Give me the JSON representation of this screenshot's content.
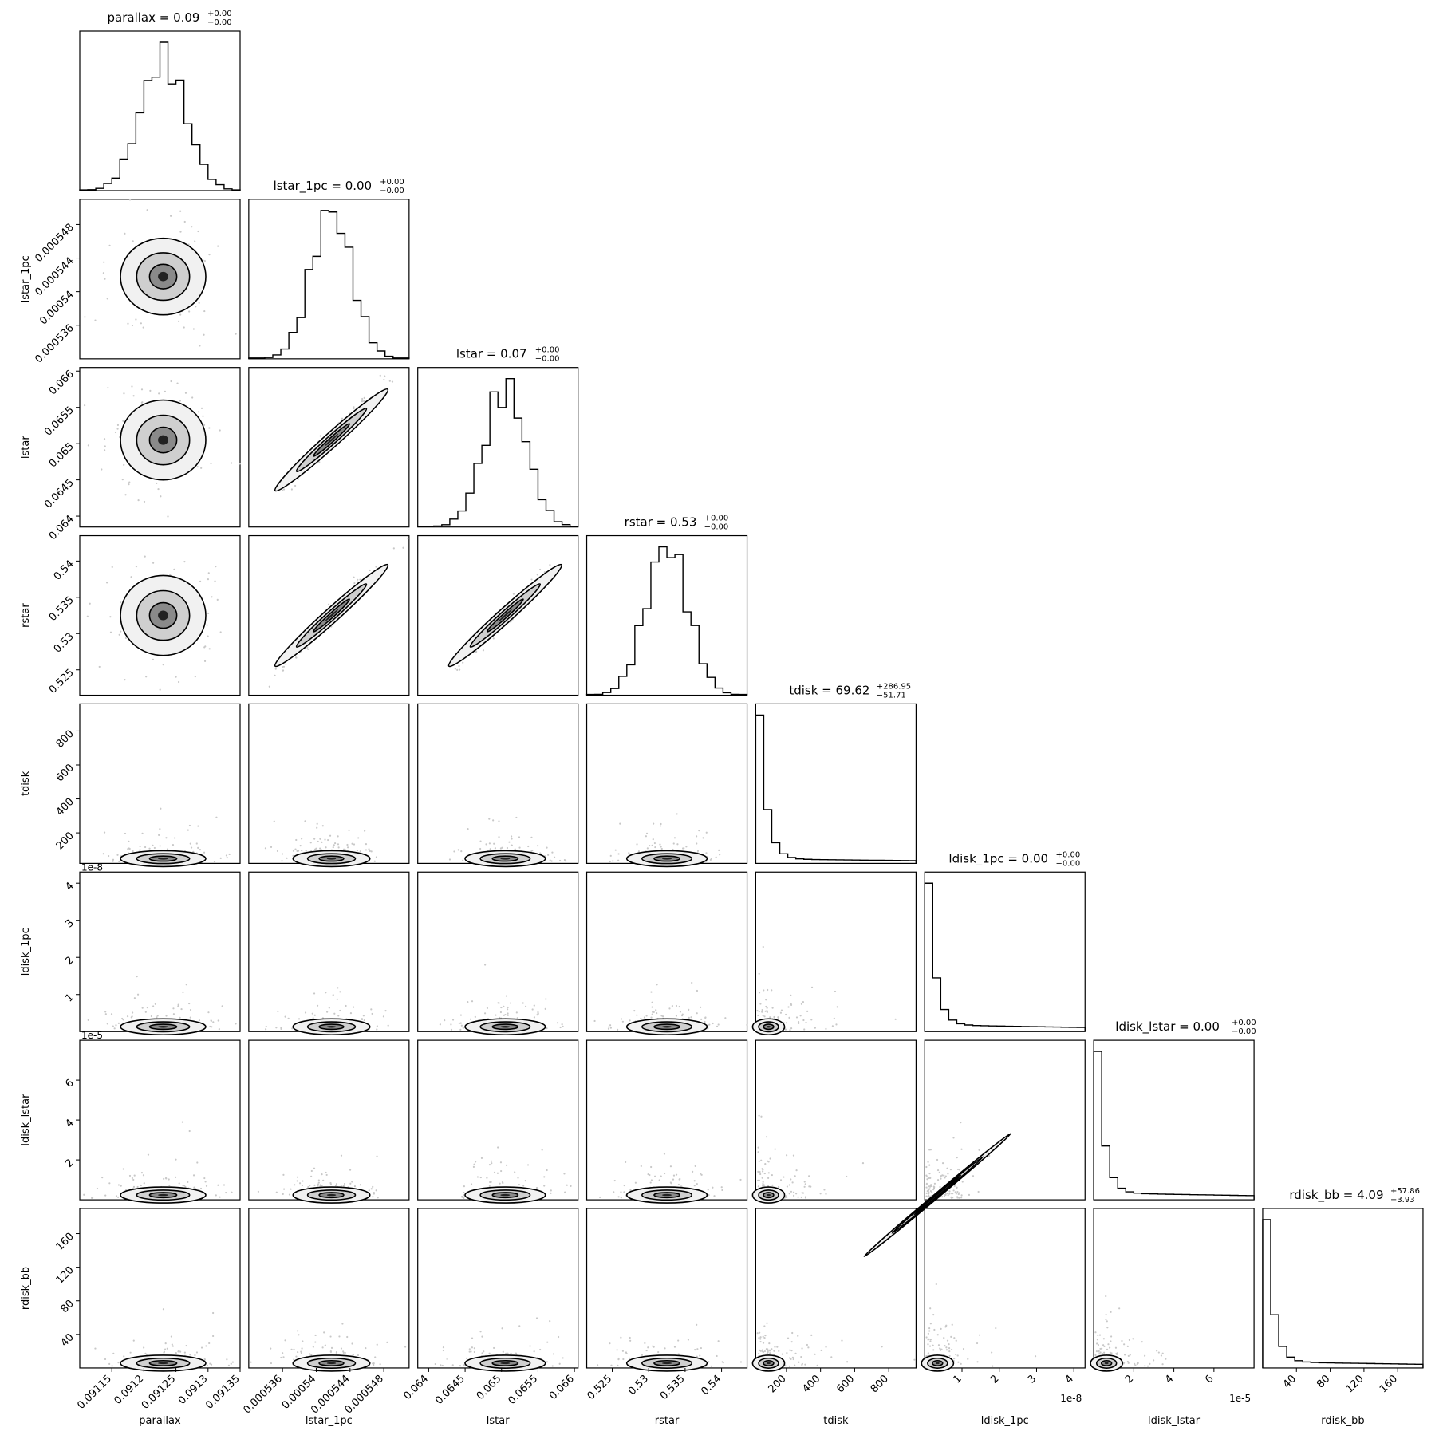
{
  "chart_data": {
    "type": "corner",
    "parameters": [
      {
        "name": "parallax",
        "ticks": [
          0.09115,
          0.0912,
          0.09125,
          0.0913,
          0.09135
        ],
        "range": [
          0.0911,
          0.09135
        ],
        "median": 0.09123,
        "sigma": 3.5e-05,
        "shape": "normal"
      },
      {
        "name": "lstar_1pc",
        "ticks": [
          0.000536,
          0.00054,
          0.000544,
          0.000548
        ],
        "range": [
          0.000532,
          0.000551
        ],
        "median": 0.0005418,
        "sigma": 2.4e-06,
        "shape": "normal"
      },
      {
        "name": "lstar",
        "ticks": [
          0.064,
          0.0645,
          0.065,
          0.0655,
          0.066
        ],
        "range": [
          0.06385,
          0.06605
        ],
        "median": 0.06505,
        "sigma": 0.00029,
        "shape": "normal"
      },
      {
        "name": "rstar",
        "ticks": [
          0.525,
          0.53,
          0.535,
          0.54
        ],
        "range": [
          0.5215,
          0.5435
        ],
        "median": 0.5325,
        "sigma": 0.0029,
        "shape": "normal"
      },
      {
        "name": "tdisk",
        "ticks": [
          200,
          400,
          600,
          800
        ],
        "range": [
          20,
          960
        ],
        "median": 69.62,
        "scale": 120,
        "shape": "skew"
      },
      {
        "name": "ldisk_1pc",
        "ticks": [
          1,
          2,
          3,
          4
        ],
        "range": [
          0,
          4.3
        ],
        "offset": "1e-8",
        "median": 0.05,
        "scale": 0.25,
        "shape": "skew"
      },
      {
        "name": "ldisk_lstar",
        "ticks": [
          2,
          4,
          6
        ],
        "range": [
          0,
          8.0
        ],
        "offset": "1e-5",
        "median": 0.08,
        "scale": 0.45,
        "shape": "skew"
      },
      {
        "name": "rdisk_bb",
        "ticks": [
          40,
          80,
          120,
          160
        ],
        "range": [
          0,
          190
        ],
        "median": 4.09,
        "scale": 20,
        "shape": "skew"
      }
    ],
    "titles": [
      {
        "lead": "parallax = 0.09",
        "sup": "+0.00",
        "sub": "−0.00"
      },
      {
        "lead": "lstar_1pc = 0.00",
        "sup": "+0.00",
        "sub": "−0.00"
      },
      {
        "lead": "lstar = 0.07",
        "sup": "+0.00",
        "sub": "−0.00"
      },
      {
        "lead": "rstar = 0.53",
        "sup": "+0.00",
        "sub": "−0.00"
      },
      {
        "lead": "tdisk = 69.62",
        "sup": "+286.95",
        "sub": "−51.71"
      },
      {
        "lead": "ldisk_1pc = 0.00",
        "sup": "+0.00",
        "sub": "−0.00"
      },
      {
        "lead": "ldisk_lstar = 0.00",
        "sup": "+0.00",
        "sub": "−0.00"
      },
      {
        "lead": "rdisk_bb = 4.09",
        "sup": "+57.86",
        "sub": "−3.93"
      }
    ],
    "correlated_pairs": [
      [
        1,
        2
      ],
      [
        1,
        3
      ],
      [
        2,
        3
      ],
      [
        5,
        6
      ]
    ],
    "grid": false,
    "legend": "none"
  }
}
